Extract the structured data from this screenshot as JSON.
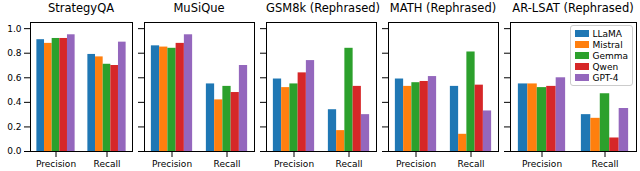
{
  "chart_data": [
    {
      "type": "bar",
      "title": "StrategyQA",
      "categories": [
        "Precision",
        "Recall"
      ],
      "series": [
        {
          "name": "LLaMA",
          "color": "#1f77b4",
          "values": [
            0.91,
            0.79
          ]
        },
        {
          "name": "Mistral",
          "color": "#ff7f0e",
          "values": [
            0.88,
            0.77
          ]
        },
        {
          "name": "Gemma",
          "color": "#2ca02c",
          "values": [
            0.92,
            0.71
          ]
        },
        {
          "name": "Qwen",
          "color": "#d62728",
          "values": [
            0.92,
            0.7
          ]
        },
        {
          "name": "GPT-4",
          "color": "#9467bd",
          "values": [
            0.95,
            0.89
          ]
        }
      ],
      "ylim": [
        0,
        1.05
      ],
      "yticks": [
        {
          "value": 0,
          "label": "0.0"
        },
        {
          "value": 0.2,
          "label": "0.2"
        },
        {
          "value": 0.4,
          "label": "0.4"
        },
        {
          "value": 0.6,
          "label": "0.6"
        },
        {
          "value": 0.8,
          "label": "0.8"
        },
        {
          "value": 1,
          "label": "1.0"
        }
      ]
    },
    {
      "type": "bar",
      "title": "MuSiQue",
      "categories": [
        "Precision",
        "Recall"
      ],
      "series": [
        {
          "name": "LLaMA",
          "color": "#1f77b4",
          "values": [
            0.86,
            0.55
          ]
        },
        {
          "name": "Mistral",
          "color": "#ff7f0e",
          "values": [
            0.85,
            0.42
          ]
        },
        {
          "name": "Gemma",
          "color": "#2ca02c",
          "values": [
            0.84,
            0.53
          ]
        },
        {
          "name": "Qwen",
          "color": "#d62728",
          "values": [
            0.88,
            0.48
          ]
        },
        {
          "name": "GPT-4",
          "color": "#9467bd",
          "values": [
            0.95,
            0.7
          ]
        }
      ],
      "ylim": [
        0,
        1.05
      ],
      "yticks": [
        0,
        0.2,
        0.4,
        0.6,
        0.8,
        1
      ],
      "tick_labels": "x"
    },
    {
      "type": "bar",
      "title": "GSM8k (Rephrased)",
      "categories": [
        "Precision",
        "Recall"
      ],
      "series": [
        {
          "name": "LLaMA",
          "color": "#1f77b4",
          "values": [
            0.59,
            0.34
          ]
        },
        {
          "name": "Mistral",
          "color": "#ff7f0e",
          "values": [
            0.52,
            0.17
          ]
        },
        {
          "name": "Gemma",
          "color": "#2ca02c",
          "values": [
            0.55,
            0.84
          ]
        },
        {
          "name": "Qwen",
          "color": "#d62728",
          "values": [
            0.64,
            0.53
          ]
        },
        {
          "name": "GPT-4",
          "color": "#9467bd",
          "values": [
            0.74,
            0.3
          ]
        }
      ],
      "ylim": [
        0,
        1.05
      ],
      "yticks": [
        0,
        0.2,
        0.4,
        0.6,
        0.8,
        1
      ],
      "tick_labels": "x"
    },
    {
      "type": "bar",
      "title": "MATH (Rephrased)",
      "categories": [
        "Precision",
        "Recall"
      ],
      "series": [
        {
          "name": "LLaMA",
          "color": "#1f77b4",
          "values": [
            0.59,
            0.53
          ]
        },
        {
          "name": "Mistral",
          "color": "#ff7f0e",
          "values": [
            0.53,
            0.14
          ]
        },
        {
          "name": "Gemma",
          "color": "#2ca02c",
          "values": [
            0.56,
            0.81
          ]
        },
        {
          "name": "Qwen",
          "color": "#d62728",
          "values": [
            0.57,
            0.54
          ]
        },
        {
          "name": "GPT-4",
          "color": "#9467bd",
          "values": [
            0.61,
            0.33
          ]
        }
      ],
      "ylim": [
        0,
        1.05
      ],
      "yticks": [
        0,
        0.2,
        0.4,
        0.6,
        0.8,
        1
      ],
      "tick_labels": "x"
    },
    {
      "type": "bar",
      "title": "AR-LSAT (Rephrased)",
      "categories": [
        "Precision",
        "Recall"
      ],
      "series": [
        {
          "name": "LLaMA",
          "color": "#1f77b4",
          "values": [
            0.55,
            0.3
          ]
        },
        {
          "name": "Mistral",
          "color": "#ff7f0e",
          "values": [
            0.55,
            0.27
          ]
        },
        {
          "name": "Gemma",
          "color": "#2ca02c",
          "values": [
            0.52,
            0.47
          ]
        },
        {
          "name": "Qwen",
          "color": "#d62728",
          "values": [
            0.53,
            0.11
          ]
        },
        {
          "name": "GPT-4",
          "color": "#9467bd",
          "values": [
            0.6,
            0.35
          ]
        }
      ],
      "ylim": [
        0,
        1.05
      ],
      "yticks": [
        0,
        0.2,
        0.4,
        0.6,
        0.8,
        1
      ],
      "tick_labels": "x",
      "legend": "upper right"
    }
  ]
}
